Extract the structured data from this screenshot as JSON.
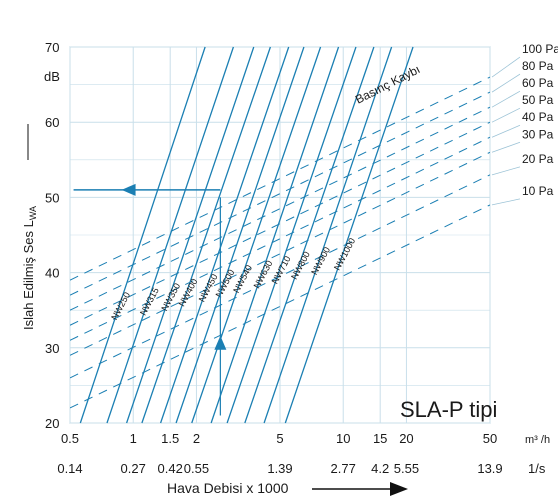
{
  "colors": {
    "line": "#1b7fb3",
    "grid": "#c9dfea",
    "axis": "#9cc3d6",
    "text": "#1a1a1a",
    "arrow": "#1b7fb3"
  },
  "chart_data": {
    "type": "line",
    "title": "SLA-P tipi",
    "ylabel": "Islah Edilmiş Ses L",
    "ylabel_sub": "WA",
    "yunit": "dB",
    "xlabel": "Hava Debisi x 1000",
    "xunit_m3h": "m³ /h",
    "xunit_ls": "1/s",
    "x_scale": "log",
    "ylim": [
      20,
      70
    ],
    "xlim": [
      0.5,
      50
    ],
    "grid": true,
    "y_ticks": [
      20,
      30,
      40,
      50,
      60,
      70
    ],
    "x_ticks_m3h": [
      {
        "value": 0.5,
        "label": "0.5"
      },
      {
        "value": 1,
        "label": "1"
      },
      {
        "value": 1.5,
        "label": "1.5"
      },
      {
        "value": 2,
        "label": "2"
      },
      {
        "value": 5,
        "label": "5"
      },
      {
        "value": 10,
        "label": "10"
      },
      {
        "value": 15,
        "label": "15"
      },
      {
        "value": 20,
        "label": "20"
      },
      {
        "value": 50,
        "label": "50"
      }
    ],
    "x_ticks_ls": [
      {
        "value": 0.5,
        "label": "0.14"
      },
      {
        "value": 1,
        "label": "0.27"
      },
      {
        "value": 1.5,
        "label": "0.42"
      },
      {
        "value": 2,
        "label": "0.55"
      },
      {
        "value": 5,
        "label": "1.39"
      },
      {
        "value": 10,
        "label": "2.77"
      },
      {
        "value": 15,
        "label": "4.2"
      },
      {
        "value": 20,
        "label": "5.55"
      },
      {
        "value": 50,
        "label": "13.9"
      }
    ],
    "series": [
      {
        "name": "NW250",
        "x": [
          0.56,
          2.2
        ],
        "y": [
          20,
          70
        ]
      },
      {
        "name": "NW315",
        "x": [
          0.75,
          3.0
        ],
        "y": [
          20,
          70
        ]
      },
      {
        "name": "NW350",
        "x": [
          0.93,
          3.75
        ],
        "y": [
          20,
          70
        ]
      },
      {
        "name": "NW400",
        "x": [
          1.1,
          4.5
        ],
        "y": [
          20,
          70
        ]
      },
      {
        "name": "NW450",
        "x": [
          1.35,
          5.5
        ],
        "y": [
          20,
          70
        ]
      },
      {
        "name": "NW500",
        "x": [
          1.6,
          6.5
        ],
        "y": [
          20,
          70
        ]
      },
      {
        "name": "NW540",
        "x": [
          1.9,
          7.8
        ],
        "y": [
          20,
          70
        ]
      },
      {
        "name": "NW630",
        "x": [
          2.35,
          9.5
        ],
        "y": [
          20,
          70
        ]
      },
      {
        "name": "NW710",
        "x": [
          2.8,
          11.5
        ],
        "y": [
          20,
          70
        ]
      },
      {
        "name": "NW800",
        "x": [
          3.4,
          14.0
        ],
        "y": [
          20,
          70
        ]
      },
      {
        "name": "NW900",
        "x": [
          4.2,
          17.0
        ],
        "y": [
          20,
          70
        ]
      },
      {
        "name": "NW1000",
        "x": [
          5.3,
          21.5
        ],
        "y": [
          20,
          70
        ]
      }
    ],
    "pressure_curves_title": "Basınç Kaybı",
    "pressure_curves": [
      {
        "label": "10 Pa",
        "y_at_xmin": 22,
        "y_at_xmax": 49
      },
      {
        "label": "20 Pa",
        "y_at_xmin": 26,
        "y_at_xmax": 53
      },
      {
        "label": "30 Pa",
        "y_at_xmin": 29,
        "y_at_xmax": 56
      },
      {
        "label": "40 Pa",
        "y_at_xmin": 31,
        "y_at_xmax": 58
      },
      {
        "label": "50 Pa",
        "y_at_xmin": 33,
        "y_at_xmax": 60
      },
      {
        "label": "60 Pa",
        "y_at_xmin": 35,
        "y_at_xmax": 62
      },
      {
        "label": "80 Pa",
        "y_at_xmin": 37,
        "y_at_xmax": 64
      },
      {
        "label": "100 Pa",
        "y_at_xmin": 39,
        "y_at_xmax": 66
      }
    ],
    "example": {
      "flow": 2.6,
      "from_y": 21,
      "to_y": 50,
      "left_to_x": 0.52
    }
  }
}
